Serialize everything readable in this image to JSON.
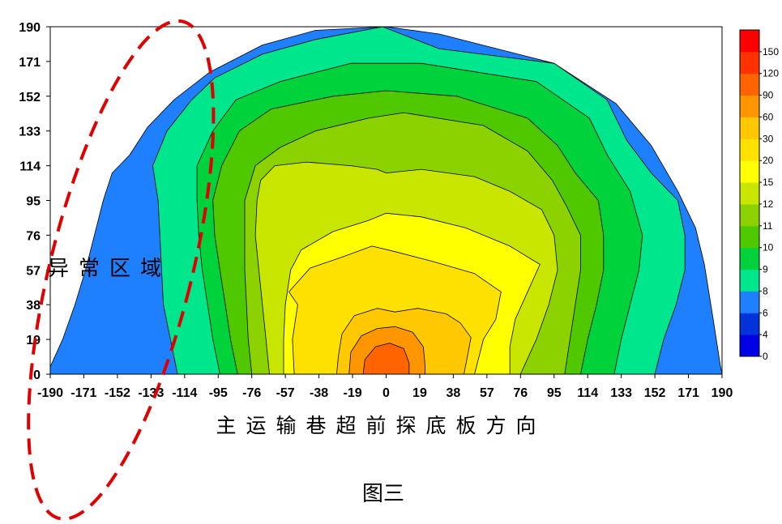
{
  "chart_data": {
    "type": "heatmap",
    "subtype": "filled-contour",
    "title": "",
    "xlabel": "主运输巷超前探底板方向",
    "ylabel": "",
    "xlim": [
      -190,
      190
    ],
    "ylim": [
      0,
      190
    ],
    "x_ticks": [
      -190,
      -171,
      -152,
      -133,
      -114,
      -95,
      -76,
      -57,
      -38,
      -19,
      0,
      19,
      38,
      57,
      76,
      95,
      114,
      133,
      152,
      171,
      190
    ],
    "x_tick_labels": [
      "-190",
      "-171",
      "-152",
      "-133",
      "-114",
      "-95",
      "-76",
      "-57",
      "-38",
      "-19",
      "0",
      "19",
      "38",
      "57",
      "76",
      "95",
      "114",
      "133",
      "152",
      "171",
      "190"
    ],
    "y_ticks": [
      0,
      19,
      38,
      57,
      76,
      95,
      114,
      133,
      152,
      171,
      190
    ],
    "y_tick_labels": [
      "0",
      "19",
      "38",
      "57",
      "76",
      "95",
      "114",
      "133",
      "152",
      "171",
      "190"
    ],
    "grid": false,
    "legend_position": "right",
    "color_scale": {
      "levels": [
        0,
        4,
        6,
        8,
        9,
        10,
        11,
        12,
        15,
        20,
        30,
        60,
        90,
        120,
        150
      ],
      "labels": [
        "0",
        "4",
        "6",
        "8",
        "9",
        "10",
        "11",
        "12",
        "15",
        "20",
        "30",
        "60",
        "90",
        "120",
        "150"
      ],
      "colors": [
        "#0000e6",
        "#0033d9",
        "#1e7fff",
        "#00e68c",
        "#00d23c",
        "#50c800",
        "#8cd200",
        "#c8e600",
        "#ffff00",
        "#ffe100",
        "#ffc800",
        "#ff9600",
        "#ff6400",
        "#ff3200",
        "#ff0000"
      ]
    },
    "contour_bands": [
      {
        "min_level": 6,
        "color": "#1e7fff",
        "boundary_points": [
          [
            -190,
            0
          ],
          [
            -190,
            4
          ],
          [
            -183,
            19
          ],
          [
            -176,
            38
          ],
          [
            -170,
            57
          ],
          [
            -165,
            76
          ],
          [
            -160,
            95
          ],
          [
            -155,
            110
          ],
          [
            -145,
            120
          ],
          [
            -135,
            135
          ],
          [
            -120,
            150
          ],
          [
            -100,
            165
          ],
          [
            -70,
            180
          ],
          [
            -40,
            188
          ],
          [
            0,
            190
          ],
          [
            30,
            186
          ],
          [
            95,
            170
          ],
          [
            130,
            148
          ],
          [
            150,
            125
          ],
          [
            165,
            100
          ],
          [
            175,
            80
          ],
          [
            180,
            60
          ],
          [
            185,
            30
          ],
          [
            189,
            5
          ],
          [
            190,
            0
          ]
        ]
      },
      {
        "min_level": 8,
        "color": "#00e68c",
        "boundary_points": [
          [
            -118,
            0
          ],
          [
            -122,
            19
          ],
          [
            -126,
            38
          ],
          [
            -127,
            57
          ],
          [
            -128,
            76
          ],
          [
            -129,
            95
          ],
          [
            -132,
            114
          ],
          [
            -124,
            133
          ],
          [
            -110,
            150
          ],
          [
            -97,
            162
          ],
          [
            -70,
            175
          ],
          [
            -40,
            183
          ],
          [
            -2,
            190
          ],
          [
            30,
            178
          ],
          [
            95,
            170
          ],
          [
            125,
            150
          ],
          [
            136,
            128
          ],
          [
            150,
            110
          ],
          [
            165,
            95
          ],
          [
            169,
            76
          ],
          [
            169,
            57
          ],
          [
            164,
            38
          ],
          [
            157,
            19
          ],
          [
            152,
            0
          ]
        ]
      },
      {
        "min_level": 9,
        "color": "#00d23c",
        "boundary_points": [
          [
            -94,
            0
          ],
          [
            -98,
            19
          ],
          [
            -101,
            38
          ],
          [
            -104,
            57
          ],
          [
            -106,
            76
          ],
          [
            -107,
            95
          ],
          [
            -107,
            114
          ],
          [
            -98,
            133
          ],
          [
            -85,
            150
          ],
          [
            -60,
            160
          ],
          [
            -20,
            170
          ],
          [
            20,
            170
          ],
          [
            85,
            160
          ],
          [
            115,
            140
          ],
          [
            125,
            120
          ],
          [
            138,
            100
          ],
          [
            145,
            76
          ],
          [
            143,
            57
          ],
          [
            138,
            38
          ],
          [
            133,
            19
          ],
          [
            129,
            0
          ]
        ]
      },
      {
        "min_level": 10,
        "color": "#50c800",
        "boundary_points": [
          [
            -84,
            0
          ],
          [
            -88,
            19
          ],
          [
            -91,
            38
          ],
          [
            -94,
            57
          ],
          [
            -97,
            76
          ],
          [
            -98,
            95
          ],
          [
            -93,
            114
          ],
          [
            -83,
            133
          ],
          [
            -65,
            145
          ],
          [
            -30,
            152
          ],
          [
            0,
            155
          ],
          [
            40,
            152
          ],
          [
            80,
            140
          ],
          [
            97,
            125
          ],
          [
            107,
            110
          ],
          [
            120,
            95
          ],
          [
            123,
            76
          ],
          [
            123,
            57
          ],
          [
            119,
            38
          ],
          [
            114,
            19
          ],
          [
            110,
            0
          ]
        ]
      },
      {
        "min_level": 11,
        "color": "#8cd200",
        "boundary_points": [
          [
            -76,
            0
          ],
          [
            -78,
            19
          ],
          [
            -79,
            38
          ],
          [
            -80,
            57
          ],
          [
            -80,
            76
          ],
          [
            -80,
            95
          ],
          [
            -74,
            114
          ],
          [
            -60,
            124
          ],
          [
            -40,
            133
          ],
          [
            -10,
            140
          ],
          [
            10,
            143
          ],
          [
            55,
            136
          ],
          [
            80,
            122
          ],
          [
            94,
            106
          ],
          [
            102,
            92
          ],
          [
            110,
            76
          ],
          [
            110,
            57
          ],
          [
            107,
            38
          ],
          [
            104,
            19
          ],
          [
            101,
            0
          ]
        ]
      },
      {
        "min_level": 12,
        "color": "#c8e600",
        "boundary_points": [
          [
            -66,
            0
          ],
          [
            -68,
            19
          ],
          [
            -70,
            38
          ],
          [
            -72,
            57
          ],
          [
            -74,
            76
          ],
          [
            -73,
            95
          ],
          [
            -71,
            106
          ],
          [
            -63,
            114
          ],
          [
            -45,
            116
          ],
          [
            -20,
            114
          ],
          [
            -5,
            112
          ],
          [
            0,
            110
          ],
          [
            20,
            112
          ],
          [
            50,
            108
          ],
          [
            70,
            100
          ],
          [
            88,
            90
          ],
          [
            95,
            76
          ],
          [
            97,
            57
          ],
          [
            92,
            38
          ],
          [
            85,
            19
          ],
          [
            76,
            0
          ]
        ]
      },
      {
        "min_level": 15,
        "color": "#ffff00",
        "boundary_points": [
          [
            -58,
            0
          ],
          [
            -58,
            19
          ],
          [
            -57,
            38
          ],
          [
            -54,
            57
          ],
          [
            -48,
            68
          ],
          [
            -30,
            78
          ],
          [
            -10,
            84
          ],
          [
            0,
            88
          ],
          [
            20,
            86
          ],
          [
            45,
            80
          ],
          [
            70,
            70
          ],
          [
            87,
            60
          ],
          [
            80,
            45
          ],
          [
            73,
            30
          ],
          [
            70,
            15
          ],
          [
            70,
            0
          ]
        ]
      },
      {
        "min_level": 20,
        "color": "#ffe100",
        "boundary_points": [
          [
            -52,
            0
          ],
          [
            -53,
            19
          ],
          [
            -50,
            38
          ],
          [
            -55,
            45
          ],
          [
            -43,
            58
          ],
          [
            -25,
            64
          ],
          [
            -8,
            70
          ],
          [
            5,
            67
          ],
          [
            25,
            62
          ],
          [
            50,
            55
          ],
          [
            65,
            45
          ],
          [
            62,
            30
          ],
          [
            55,
            19
          ],
          [
            50,
            0
          ]
        ]
      },
      {
        "min_level": 30,
        "color": "#ffc800",
        "boundary_points": [
          [
            -28,
            0
          ],
          [
            -27,
            10
          ],
          [
            -25,
            22
          ],
          [
            -18,
            32
          ],
          [
            -5,
            36
          ],
          [
            5,
            34
          ],
          [
            18,
            36
          ],
          [
            34,
            33
          ],
          [
            42,
            28
          ],
          [
            48,
            20
          ],
          [
            46,
            10
          ],
          [
            44,
            0
          ]
        ]
      },
      {
        "min_level": 60,
        "color": "#ff9600",
        "boundary_points": [
          [
            -21,
            0
          ],
          [
            -20,
            12
          ],
          [
            -14,
            21
          ],
          [
            -5,
            25
          ],
          [
            5,
            26
          ],
          [
            15,
            23
          ],
          [
            21,
            15
          ],
          [
            22,
            5
          ],
          [
            22,
            0
          ]
        ]
      },
      {
        "min_level": 90,
        "color": "#ff6400",
        "boundary_points": [
          [
            -13,
            0
          ],
          [
            -12,
            8
          ],
          [
            -6,
            15
          ],
          [
            2,
            17
          ],
          [
            10,
            14
          ],
          [
            13,
            6
          ],
          [
            13,
            0
          ]
        ]
      }
    ],
    "annotations": [
      {
        "text": "异常区域",
        "shape": "dashed-ellipse",
        "color": "#e00000",
        "cx": -150,
        "cy": 57,
        "rx": 40,
        "ry": 140
      }
    ],
    "caption": "图三"
  }
}
